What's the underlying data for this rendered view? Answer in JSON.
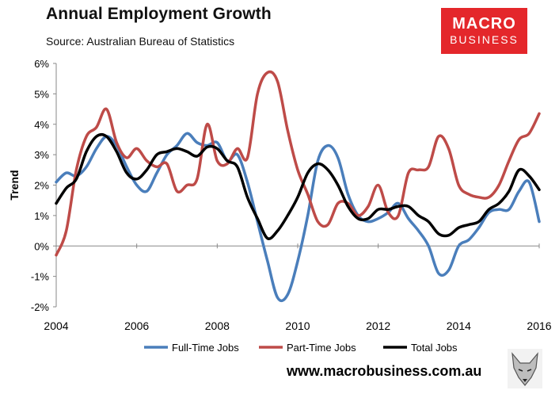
{
  "header": {
    "title": "Annual Employment Growth",
    "subtitle": "Source: Australian Bureau of Statistics"
  },
  "logo": {
    "line1": "MACRO",
    "line2": "BUSINESS",
    "color": "#e4272b"
  },
  "footer": {
    "url": "www.macrobusiness.com.au"
  },
  "chart_data": {
    "type": "line",
    "title": "Annual Employment Growth",
    "xlabel": "",
    "ylabel": "Trend",
    "xlim": [
      2004,
      2016
    ],
    "ylim": [
      -2,
      6
    ],
    "x_ticks": [
      2004,
      2006,
      2008,
      2010,
      2012,
      2014,
      2016
    ],
    "y_ticks": [
      -2,
      -1,
      0,
      1,
      2,
      3,
      4,
      5,
      6
    ],
    "y_tick_labels": [
      "-2%",
      "-1%",
      "0%",
      "1%",
      "2%",
      "3%",
      "4%",
      "5%",
      "6%"
    ],
    "grid": false,
    "legend_position": "bottom",
    "series": [
      {
        "name": "Full-Time Jobs",
        "color": "#4a7ebb",
        "x": [
          2004.0,
          2004.25,
          2004.5,
          2004.75,
          2005.0,
          2005.25,
          2005.5,
          2005.75,
          2006.0,
          2006.25,
          2006.5,
          2006.75,
          2007.0,
          2007.25,
          2007.5,
          2007.75,
          2008.0,
          2008.25,
          2008.5,
          2008.75,
          2009.0,
          2009.25,
          2009.5,
          2009.75,
          2010.0,
          2010.25,
          2010.5,
          2010.75,
          2011.0,
          2011.25,
          2011.5,
          2011.75,
          2012.0,
          2012.25,
          2012.5,
          2012.75,
          2013.0,
          2013.25,
          2013.5,
          2013.75,
          2014.0,
          2014.25,
          2014.5,
          2014.75,
          2015.0,
          2015.25,
          2015.5,
          2015.75,
          2016.0
        ],
        "values": [
          2.1,
          2.4,
          2.3,
          2.6,
          3.2,
          3.6,
          3.3,
          2.6,
          2.0,
          1.8,
          2.4,
          3.0,
          3.3,
          3.7,
          3.4,
          3.3,
          3.4,
          2.8,
          3.0,
          2.1,
          0.8,
          -0.5,
          -1.7,
          -1.6,
          -0.5,
          1.0,
          2.8,
          3.3,
          2.9,
          1.7,
          1.0,
          0.8,
          0.9,
          1.1,
          1.4,
          0.9,
          0.5,
          0.0,
          -0.9,
          -0.8,
          0.0,
          0.2,
          0.6,
          1.1,
          1.2,
          1.2,
          1.8,
          2.1,
          0.8
        ]
      },
      {
        "name": "Part-Time Jobs",
        "color": "#be4b48",
        "x": [
          2004.0,
          2004.25,
          2004.5,
          2004.75,
          2005.0,
          2005.25,
          2005.5,
          2005.75,
          2006.0,
          2006.25,
          2006.5,
          2006.75,
          2007.0,
          2007.25,
          2007.5,
          2007.75,
          2008.0,
          2008.25,
          2008.5,
          2008.75,
          2009.0,
          2009.25,
          2009.5,
          2009.75,
          2010.0,
          2010.25,
          2010.5,
          2010.75,
          2011.0,
          2011.25,
          2011.5,
          2011.75,
          2012.0,
          2012.25,
          2012.5,
          2012.75,
          2013.0,
          2013.25,
          2013.5,
          2013.75,
          2014.0,
          2014.25,
          2014.5,
          2014.75,
          2015.0,
          2015.25,
          2015.5,
          2015.75,
          2016.0
        ],
        "values": [
          -0.3,
          0.5,
          2.5,
          3.6,
          3.9,
          4.5,
          3.4,
          2.9,
          3.2,
          2.8,
          2.6,
          2.7,
          1.8,
          2.0,
          2.2,
          4.0,
          2.8,
          2.7,
          3.2,
          2.9,
          5.0,
          5.7,
          5.4,
          3.8,
          2.5,
          1.7,
          0.8,
          0.7,
          1.4,
          1.4,
          1.0,
          1.3,
          2.0,
          1.1,
          1.0,
          2.4,
          2.5,
          2.6,
          3.6,
          3.2,
          2.0,
          1.7,
          1.6,
          1.6,
          2.0,
          2.8,
          3.5,
          3.7,
          4.35
        ]
      },
      {
        "name": "Total Jobs",
        "color": "#000000",
        "x": [
          2004.0,
          2004.25,
          2004.5,
          2004.75,
          2005.0,
          2005.25,
          2005.5,
          2005.75,
          2006.0,
          2006.25,
          2006.5,
          2006.75,
          2007.0,
          2007.25,
          2007.5,
          2007.75,
          2008.0,
          2008.25,
          2008.5,
          2008.75,
          2009.0,
          2009.25,
          2009.5,
          2009.75,
          2010.0,
          2010.25,
          2010.5,
          2010.75,
          2011.0,
          2011.25,
          2011.5,
          2011.75,
          2012.0,
          2012.25,
          2012.5,
          2012.75,
          2013.0,
          2013.25,
          2013.5,
          2013.75,
          2014.0,
          2014.25,
          2014.5,
          2014.75,
          2015.0,
          2015.25,
          2015.5,
          2015.75,
          2016.0
        ],
        "values": [
          1.4,
          1.9,
          2.2,
          3.1,
          3.6,
          3.6,
          3.1,
          2.4,
          2.2,
          2.5,
          3.0,
          3.1,
          3.2,
          3.1,
          2.95,
          3.25,
          3.2,
          2.8,
          2.6,
          1.6,
          0.9,
          0.25,
          0.5,
          1.0,
          1.6,
          2.4,
          2.7,
          2.5,
          2.0,
          1.3,
          0.9,
          0.9,
          1.2,
          1.2,
          1.3,
          1.3,
          1.0,
          0.8,
          0.4,
          0.35,
          0.6,
          0.7,
          0.8,
          1.2,
          1.4,
          1.8,
          2.5,
          2.3,
          1.85
        ]
      }
    ]
  }
}
